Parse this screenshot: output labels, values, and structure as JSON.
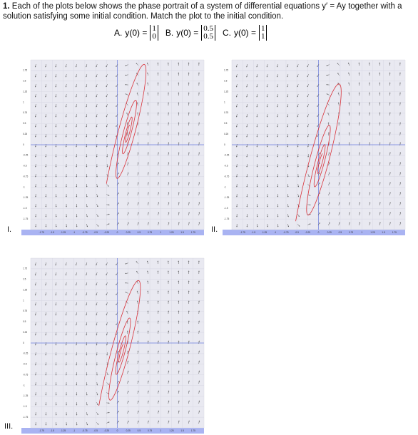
{
  "question": {
    "number": "1.",
    "text": "Each of the plots below shows the phase portrait of a system of differential equations y′ = Ay together with a solution satisfying some initial condition. Match the plot to the initial condition."
  },
  "options": [
    {
      "label": "A.",
      "lhs": "y(0) =",
      "vector": [
        "1",
        "0"
      ]
    },
    {
      "label": "B.",
      "lhs": "y(0) =",
      "vector": [
        "0.5",
        "0.5"
      ]
    },
    {
      "label": "C.",
      "lhs": "y(0) =",
      "vector": [
        "1",
        "1"
      ]
    }
  ],
  "plots": [
    {
      "label": "I."
    },
    {
      "label": "II."
    },
    {
      "label": "III."
    }
  ],
  "axis_ticks": [
    -1.75,
    -1.5,
    -1.25,
    -1,
    -0.75,
    -0.5,
    -0.25,
    0,
    0.25,
    0.5,
    0.75,
    1,
    1.25,
    1.5,
    1.75
  ]
}
